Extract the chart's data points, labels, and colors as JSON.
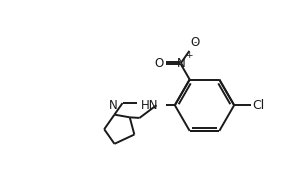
{
  "background_color": "#ffffff",
  "line_color": "#1a1a1a",
  "line_width": 1.4,
  "font_size": 8.5,
  "xlim": [
    0,
    10
  ],
  "ylim": [
    0,
    6.5
  ]
}
